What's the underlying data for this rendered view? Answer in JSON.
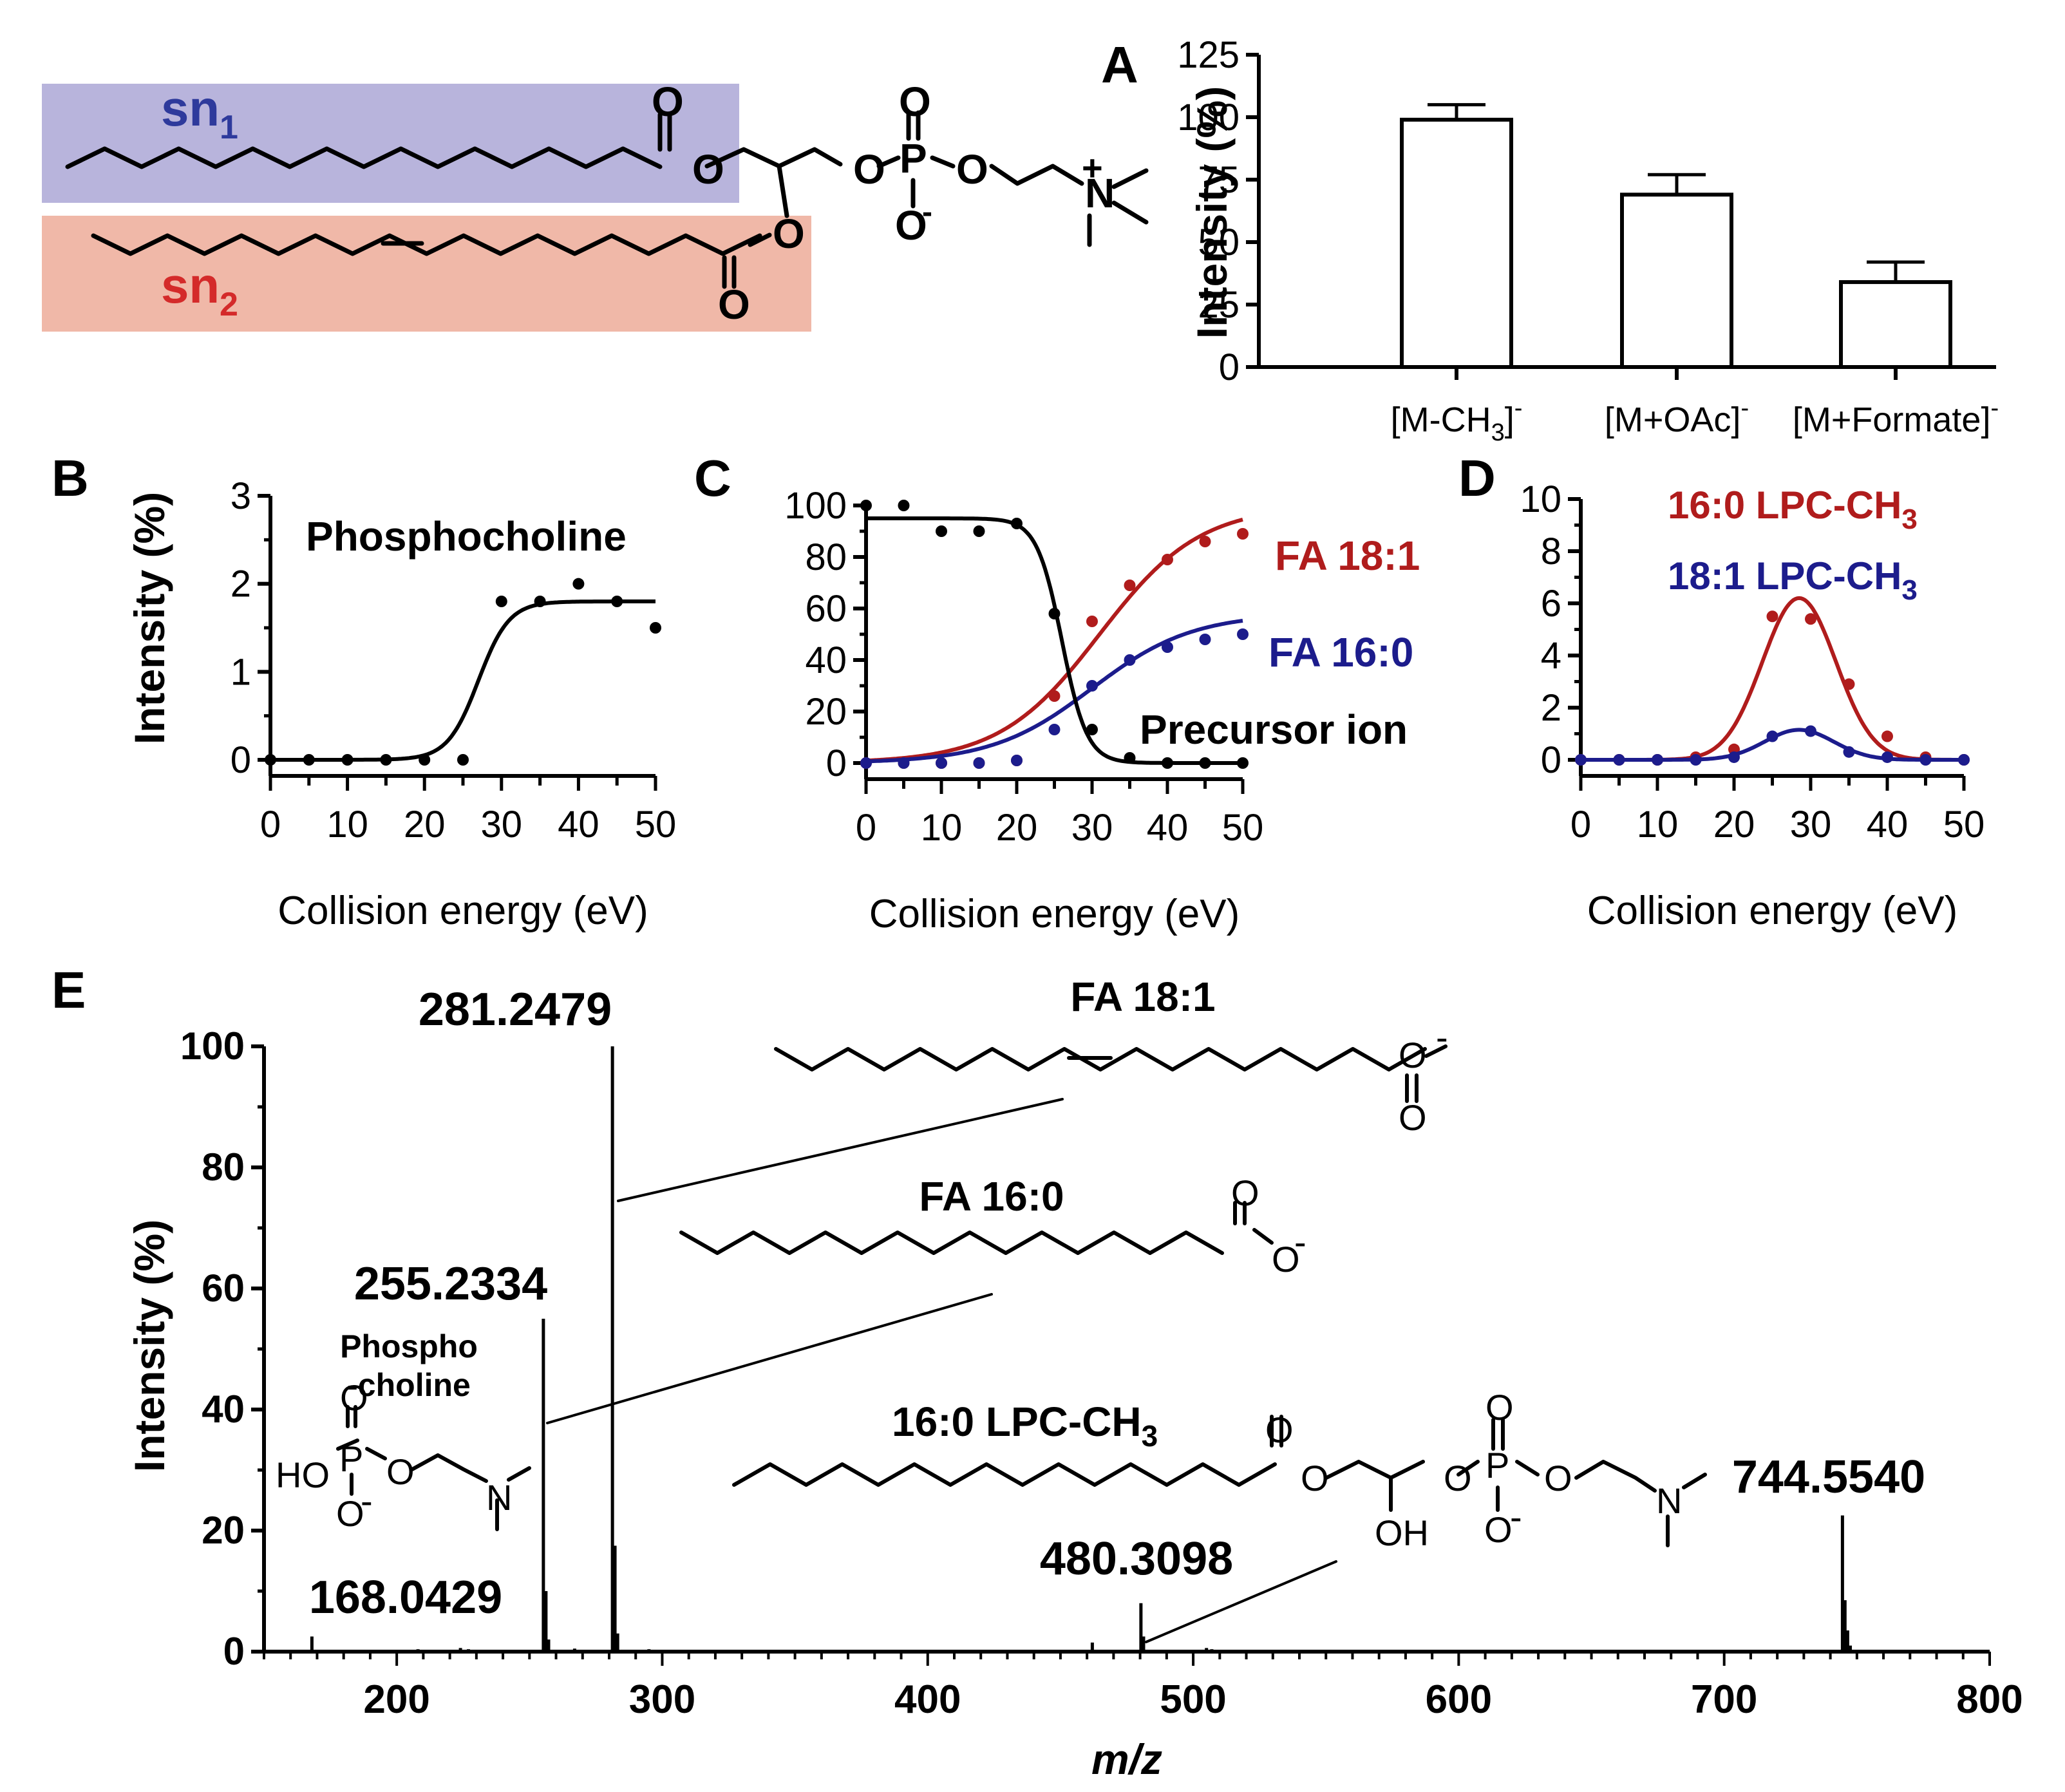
{
  "colors": {
    "black": "#000000",
    "red": "#b01c1c",
    "blue": "#1c1c8c",
    "sn1_box": "#b8b4dc",
    "sn2_box": "#f0b8a8",
    "sn1_text": "#2e3a9c",
    "sn2_text": "#d42a2a"
  },
  "structure": {
    "sn1_label": "sn",
    "sn1_sub": "1",
    "sn2_label": "sn",
    "sn2_sub": "2",
    "atom_O": "O",
    "atom_P": "P",
    "atom_N": "N",
    "minus": "-",
    "plus": "+"
  },
  "chart_data": [
    {
      "panel": "A",
      "type": "bar",
      "title": "",
      "categories": [
        "[M-CH3]-",
        "[M+OAc]-",
        "[M+Formate]-"
      ],
      "category_text": [
        {
          "main": "[M-CH",
          "sub": "3",
          "tail": "]",
          "sup": "-"
        },
        {
          "main": "[M+OAc]",
          "sub": "",
          "tail": "",
          "sup": "-"
        },
        {
          "main": "[M+Formate]",
          "sub": "",
          "tail": "",
          "sup": "-"
        }
      ],
      "values": [
        99,
        69,
        34
      ],
      "errors": [
        6,
        8,
        8
      ],
      "ylabel": "Intensity (%)",
      "ylim": [
        0,
        125
      ],
      "yticks": [
        0,
        25,
        50,
        75,
        100,
        125
      ]
    },
    {
      "panel": "B",
      "type": "scatter",
      "xlabel": "Collision energy (eV)",
      "ylabel": "Intensity (%)",
      "xlim": [
        0,
        50
      ],
      "ylim": [
        0,
        3
      ],
      "xticks": [
        0,
        10,
        20,
        30,
        40,
        50
      ],
      "yticks": [
        0,
        1,
        2,
        3
      ],
      "series": [
        {
          "name": "Phosphocholine",
          "color": "black",
          "x": [
            0,
            5,
            10,
            15,
            20,
            25,
            30,
            35,
            40,
            45,
            50
          ],
          "y": [
            0,
            0,
            0,
            0,
            0,
            0,
            1.8,
            1.8,
            2.0,
            1.8,
            1.5
          ],
          "fit": {
            "kind": "sigmoid",
            "bottom": 0,
            "top": 1.8,
            "x50": 27,
            "k": 0.5
          }
        }
      ],
      "annotations": [
        "Phosphocholine"
      ]
    },
    {
      "panel": "C",
      "type": "scatter",
      "xlabel": "Collision energy (eV)",
      "ylabel": "",
      "xlim": [
        0,
        50
      ],
      "ylim": [
        0,
        100
      ],
      "xticks": [
        0,
        10,
        20,
        30,
        40,
        50
      ],
      "yticks": [
        0,
        20,
        40,
        60,
        80,
        100
      ],
      "series": [
        {
          "name": "FA 18:1",
          "color": "red",
          "x": [
            0,
            5,
            10,
            15,
            20,
            25,
            30,
            35,
            40,
            45,
            50
          ],
          "y": [
            0,
            0,
            0,
            0,
            1,
            26,
            55,
            69,
            79,
            86,
            89
          ],
          "fit": {
            "kind": "sigmoid",
            "bottom": 0,
            "top": 100,
            "x50": 31,
            "k": 0.15
          }
        },
        {
          "name": "FA 16:0",
          "color": "blue",
          "x": [
            0,
            5,
            10,
            15,
            20,
            25,
            30,
            35,
            40,
            45,
            50
          ],
          "y": [
            0,
            0,
            0,
            0,
            1,
            13,
            30,
            40,
            45,
            48,
            50
          ],
          "fit": {
            "kind": "sigmoid",
            "bottom": 0,
            "top": 58,
            "x50": 30,
            "k": 0.15
          }
        },
        {
          "name": "Precursor ion",
          "color": "black",
          "x": [
            0,
            5,
            10,
            15,
            20,
            25,
            30,
            35,
            40,
            45,
            50
          ],
          "y": [
            100,
            100,
            90,
            90,
            93,
            58,
            13,
            2,
            0,
            0,
            0
          ],
          "fit": {
            "kind": "sigmoid",
            "bottom": 95,
            "top": 0,
            "x50": 26,
            "k": 0.6
          }
        }
      ]
    },
    {
      "panel": "D",
      "type": "scatter",
      "xlabel": "Collision energy (eV)",
      "ylabel": "",
      "xlim": [
        0,
        50
      ],
      "ylim": [
        0,
        10
      ],
      "xticks": [
        0,
        10,
        20,
        30,
        40,
        50
      ],
      "yticks": [
        0,
        2,
        4,
        6,
        8,
        10
      ],
      "series": [
        {
          "name": "16:0 LPC-CH3",
          "label_main": "16:0 LPC-CH",
          "label_sub": "3",
          "color": "red",
          "x": [
            0,
            5,
            10,
            15,
            20,
            25,
            30,
            35,
            40,
            45,
            50
          ],
          "y": [
            0,
            0,
            0,
            0.1,
            0.4,
            5.5,
            5.4,
            2.9,
            0.9,
            0.1,
            0
          ],
          "fit": {
            "kind": "gauss",
            "amp": 6.2,
            "mu": 28.5,
            "sigma": 4.8
          }
        },
        {
          "name": "18:1 LPC-CH3",
          "label_main": "18:1 LPC-CH",
          "label_sub": "3",
          "color": "blue",
          "x": [
            0,
            5,
            10,
            15,
            20,
            25,
            30,
            35,
            40,
            45,
            50
          ],
          "y": [
            0,
            0,
            0,
            0,
            0.1,
            0.9,
            1.1,
            0.3,
            0.1,
            0,
            0
          ],
          "fit": {
            "kind": "gauss",
            "amp": 1.15,
            "mu": 28.5,
            "sigma": 4.5
          }
        }
      ]
    },
    {
      "panel": "E",
      "type": "spectrum",
      "xlabel": "m/z",
      "ylabel": "Intensity (%)",
      "xlim": [
        150,
        800
      ],
      "ylim": [
        0,
        100
      ],
      "xticks": [
        200,
        300,
        400,
        500,
        600,
        700,
        800
      ],
      "yticks": [
        0,
        20,
        40,
        60,
        80,
        100
      ],
      "peaks": [
        {
          "mz": 168.0429,
          "i": 2.5
        },
        {
          "mz": 208,
          "i": 0.4
        },
        {
          "mz": 224,
          "i": 0.6
        },
        {
          "mz": 227,
          "i": 0.4
        },
        {
          "mz": 255.2334,
          "i": 55
        },
        {
          "mz": 256.2,
          "i": 10
        },
        {
          "mz": 257.2,
          "i": 2
        },
        {
          "mz": 281.2479,
          "i": 100
        },
        {
          "mz": 282.2,
          "i": 17.5
        },
        {
          "mz": 283.2,
          "i": 3
        },
        {
          "mz": 267,
          "i": 0.5
        },
        {
          "mz": 295,
          "i": 0.4
        },
        {
          "mz": 462,
          "i": 1.5
        },
        {
          "mz": 480.3098,
          "i": 8
        },
        {
          "mz": 481.3,
          "i": 2.5
        },
        {
          "mz": 505,
          "i": 0.6
        },
        {
          "mz": 507,
          "i": 0.4
        },
        {
          "mz": 744.554,
          "i": 22.5
        },
        {
          "mz": 745.5,
          "i": 8.5
        },
        {
          "mz": 746.5,
          "i": 3.5
        },
        {
          "mz": 747.5,
          "i": 1
        }
      ],
      "peak_labels": [
        "168.0429",
        "255.2334",
        "281.2479",
        "480.3098",
        "744.5540"
      ],
      "annotations": {
        "fa181": "FA 18:1",
        "fa160": "FA 16:0",
        "lpc_main": "16:0 LPC-CH",
        "lpc_sub": "3",
        "phospho1": "Phospho",
        "phospho2": "-choline",
        "HO": "HO",
        "OH": "OH"
      }
    }
  ]
}
